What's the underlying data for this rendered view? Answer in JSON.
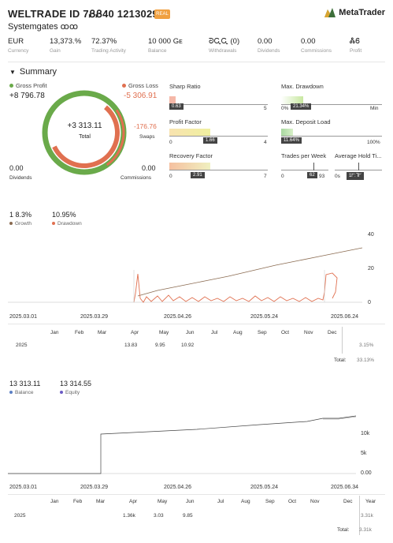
{
  "header": {
    "title": "WELTRADE ID 7ᏰᏰ40 12130295",
    "badge": "REAL",
    "brand": "MetaTrader",
    "subtitle": "Systemgates ꝏꝏ"
  },
  "stats": [
    {
      "value": "EUR",
      "label": "Currency"
    },
    {
      "value": "13,373.%",
      "label": "Gain"
    },
    {
      "value": "72.37%",
      "label": "Trading Activity"
    },
    {
      "value": "10 000 Gᴇ",
      "label": "Balance"
    },
    {
      "value": "ᘐᏩᏩ (0)",
      "label": "Withdrawals"
    },
    {
      "value": "0.00",
      "label": "Dividends"
    },
    {
      "value": "0.00",
      "label": "Commissions"
    },
    {
      "value": "ᏜᏮ",
      "label": "Profit"
    }
  ],
  "summary": {
    "title": "Summary",
    "gross_profit_label": "Gross Profit",
    "gross_profit": "+8 796.78",
    "gross_loss_label": "Gross Loss",
    "gross_loss": "-5 306.91",
    "total_value": "+3 313.11",
    "total_label": "Total",
    "swaps_value": "-176.76",
    "swaps_label": "Swaps",
    "dividends_value": "0.00",
    "dividends_label": "Dividends",
    "commissions_value": "0.00",
    "commissions_label": "Commissions"
  },
  "metrics": {
    "sharp": {
      "label": "Sharp Ratio",
      "tag": "0.63",
      "min": "0",
      "max": "5",
      "fraction": 0.126
    },
    "profit": {
      "label": "Profit Factor",
      "tag": "1.66",
      "min": "0",
      "max": "4",
      "fraction": 0.415
    },
    "recovery": {
      "label": "Recovery Factor",
      "tag": "2.91",
      "min": "0",
      "max": "7",
      "fraction": 0.415
    },
    "drawdown": {
      "label": "Max. Drawdown",
      "tag": "21.34%",
      "min": "0%",
      "max": "Min",
      "fraction": 0.2134
    },
    "deposit": {
      "label": "Max. Deposit Load",
      "tag": "11.64%",
      "min": "0%",
      "max": "100%",
      "fraction": 0.1164
    },
    "trades": {
      "label": "Trades per Week",
      "tag": "62",
      "min": "0",
      "max": "93",
      "fraction": 0.67
    },
    "hold": {
      "label": "Average Hold Ti...",
      "tag": "1ᖸ:ᒣᖸ",
      "min": "0s",
      "max": "",
      "fraction": 0.7
    }
  },
  "chart1": {
    "legend_value_1": "1 8.3%",
    "legend_value_2": "10.95%",
    "legend_label_1": "Growth",
    "legend_label_2": "Drawdown",
    "growth_color": "#8a6a50",
    "drawdown_color": "#e07050",
    "y_ticks": [
      "40",
      "20",
      "0"
    ],
    "x_ticks": [
      "2025.03.01",
      "2025.03.29",
      "2025.04.26",
      "2025.05.24",
      "2025.06.24"
    ]
  },
  "table1": {
    "months": [
      "Jan",
      "Feb",
      "Mar",
      "Apr",
      "May",
      "Jun",
      "Jul",
      "Aug",
      "Sep",
      "Oct",
      "Nov",
      "Dec"
    ],
    "year": "2025",
    "values": [
      "",
      "",
      "",
      "13.83",
      "9.95",
      "10.92",
      "",
      "",
      "",
      "",
      "",
      ""
    ],
    "year_total": "3.15%",
    "total_label": "Total:",
    "total_value": "33.13%"
  },
  "chart2": {
    "legend_value_1": "13 313.11",
    "legend_value_2": "13 314.55",
    "legend_label_1": "Balance",
    "legend_label_2": "Equity",
    "balance_color": "#5b7fc4",
    "equity_color": "#6a5ac4",
    "y_ticks": [
      "10k",
      "5k",
      "0.00"
    ],
    "x_ticks": [
      "2025.03.01",
      "2025.03.29",
      "2025.04.26",
      "2025.05.24",
      "2025.06.34"
    ]
  },
  "table2": {
    "months": [
      "Jan",
      "Feb",
      "Mar",
      "Apr",
      "May",
      "Jun",
      "Jul",
      "Aug",
      "Sep",
      "Oct",
      "Nov",
      "Dec"
    ],
    "year_label": "Year",
    "year": "2025",
    "values": [
      "",
      "",
      "",
      "1.36k",
      "3.03",
      "9.85",
      "",
      "",
      "",
      "",
      "",
      ""
    ],
    "year_total": "3.31k",
    "total_label": "Total:",
    "total_value": "3.31k"
  }
}
